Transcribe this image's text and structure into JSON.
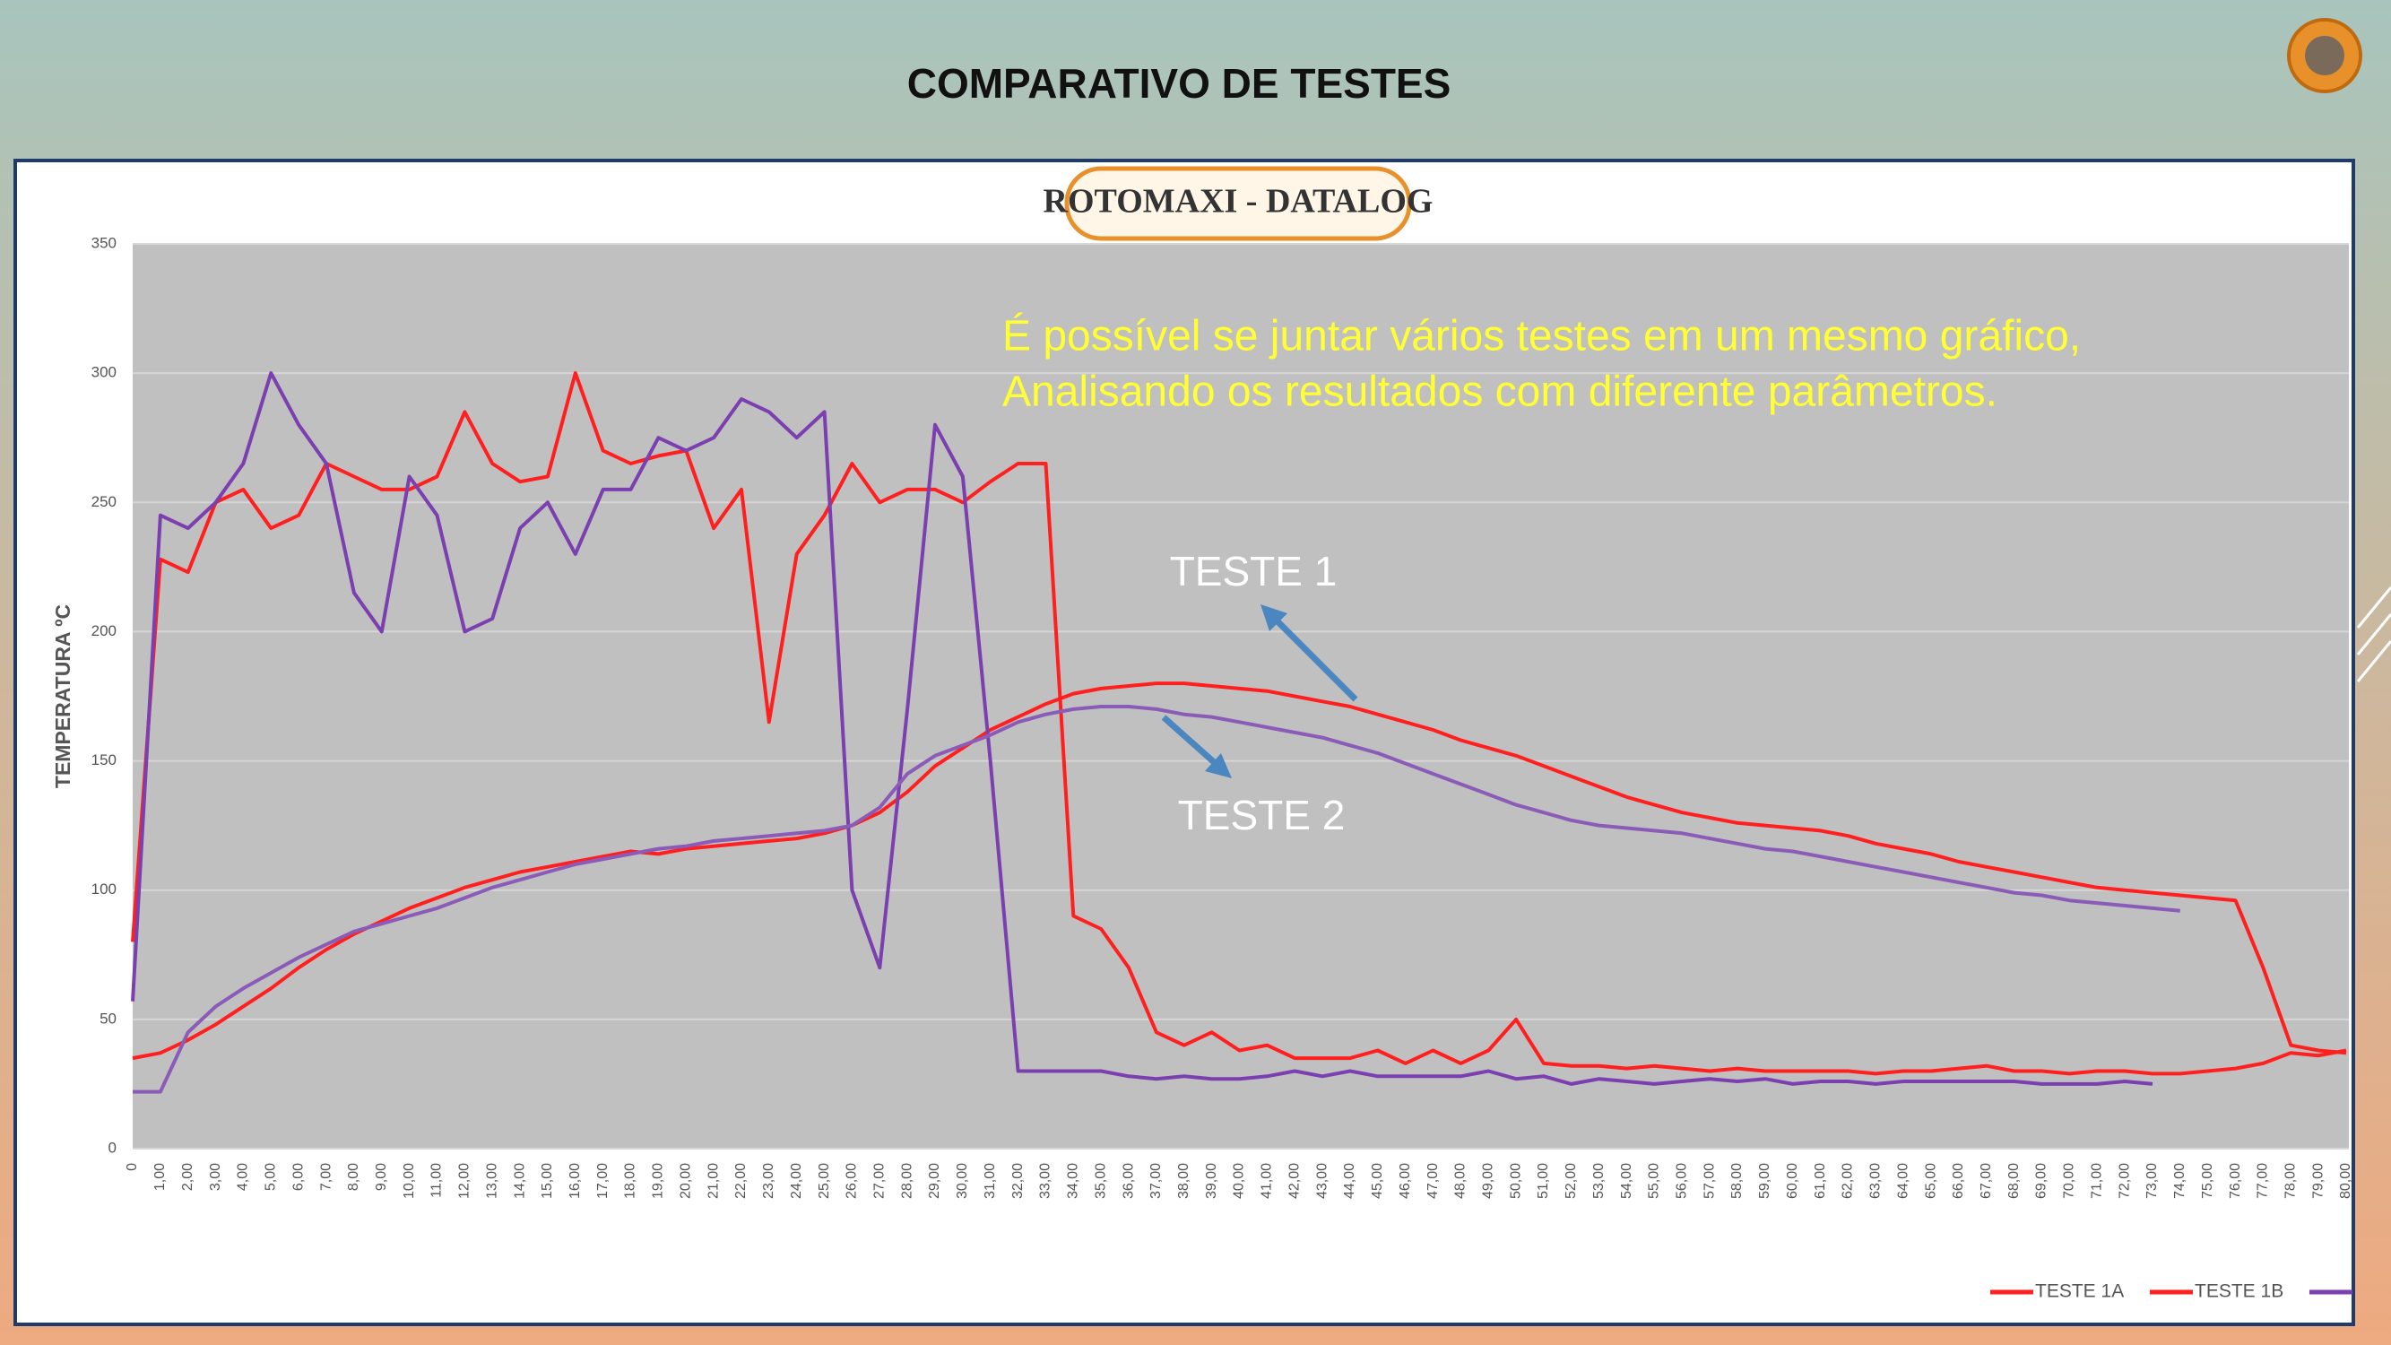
{
  "slide_title": "COMPARATIVO DE TESTES",
  "logo_text": "ROTOMAXI - DATALOG",
  "chart_data": {
    "type": "line",
    "ylabel": "TEMPERATURA ºC",
    "ylim": [
      0,
      350
    ],
    "yticks": [
      0,
      50,
      100,
      150,
      200,
      250,
      300,
      350
    ],
    "grid": true,
    "legend": "bottom-right",
    "annotations": [
      "É possível se juntar vários testes em um mesmo gráfico,",
      "Analisando os resultados com diferente parâmetros.",
      "TESTE 1",
      "TESTE 2"
    ],
    "categories": [
      "0",
      "1,00",
      "2,00",
      "3,00",
      "4,00",
      "5,00",
      "6,00",
      "7,00",
      "8,00",
      "9,00",
      "10,00",
      "11,00",
      "12,00",
      "13,00",
      "14,00",
      "15,00",
      "16,00",
      "17,00",
      "18,00",
      "19,00",
      "20,00",
      "21,00",
      "22,00",
      "23,00",
      "24,00",
      "25,00",
      "26,00",
      "27,00",
      "28,00",
      "29,00",
      "30,00",
      "31,00",
      "32,00",
      "33,00",
      "34,00",
      "35,00",
      "36,00",
      "37,00",
      "38,00",
      "39,00",
      "40,00",
      "41,00",
      "42,00",
      "43,00",
      "44,00",
      "45,00",
      "46,00",
      "47,00",
      "48,00",
      "49,00",
      "50,00",
      "51,00",
      "52,00",
      "53,00",
      "54,00",
      "55,00",
      "56,00",
      "57,00",
      "58,00",
      "59,00",
      "60,00",
      "61,00",
      "62,00",
      "63,00",
      "64,00",
      "65,00",
      "66,00",
      "67,00",
      "68,00",
      "69,00",
      "70,00",
      "71,00",
      "72,00",
      "73,00",
      "74,00",
      "75,00",
      "76,00",
      "77,00",
      "78,00",
      "79,00",
      "80,00"
    ],
    "series": [
      {
        "name": "TESTE 1A",
        "color": "#ff1f1f",
        "values": [
          80,
          228,
          223,
          250,
          255,
          240,
          245,
          265,
          260,
          255,
          255,
          260,
          285,
          265,
          258,
          260,
          300,
          270,
          265,
          268,
          270,
          240,
          255,
          165,
          230,
          245,
          265,
          250,
          255,
          255,
          250,
          258,
          265,
          265,
          90,
          85,
          70,
          45,
          40,
          45,
          38,
          40,
          35,
          35,
          35,
          38,
          33,
          38,
          33,
          38,
          50,
          33,
          32,
          32,
          31,
          32,
          31,
          30,
          31,
          30,
          30,
          30,
          30,
          29,
          30,
          30,
          31,
          32,
          30,
          30,
          29,
          30,
          30,
          29,
          29,
          30,
          31,
          33,
          37,
          36,
          38
        ]
      },
      {
        "name": "TESTE 1B",
        "color": "#ff1f1f",
        "values": [
          35,
          37,
          42,
          48,
          55,
          62,
          70,
          77,
          83,
          88,
          93,
          97,
          101,
          104,
          107,
          109,
          111,
          113,
          115,
          114,
          116,
          117,
          118,
          119,
          120,
          122,
          125,
          130,
          138,
          148,
          155,
          162,
          167,
          172,
          176,
          178,
          179,
          180,
          180,
          179,
          178,
          177,
          175,
          173,
          171,
          168,
          165,
          162,
          158,
          155,
          152,
          148,
          144,
          140,
          136,
          133,
          130,
          128,
          126,
          125,
          124,
          123,
          121,
          118,
          116,
          114,
          111,
          109,
          107,
          105,
          103,
          101,
          100,
          99,
          98,
          97,
          96,
          70,
          40,
          38,
          37
        ]
      },
      {
        "color": "#7b3fb0",
        "values": [
          57,
          245,
          240,
          250,
          265,
          300,
          280,
          265,
          215,
          200,
          260,
          245,
          200,
          205,
          240,
          250,
          230,
          255,
          255,
          275,
          270,
          275,
          290,
          285,
          275,
          285,
          100,
          70,
          170,
          280,
          260,
          150,
          30,
          30,
          30,
          30,
          28,
          27,
          28,
          27,
          27,
          28,
          30,
          28,
          30,
          28,
          28,
          28,
          28,
          30,
          27,
          28,
          25,
          27,
          26,
          25,
          26,
          27,
          26,
          27,
          25,
          26,
          26,
          25,
          26,
          26,
          26,
          26,
          26,
          25,
          25,
          25,
          26,
          25,
          null,
          null,
          null,
          null,
          null,
          null,
          null
        ]
      },
      {
        "color": "#8a5cb8",
        "values": [
          22,
          22,
          45,
          55,
          62,
          68,
          74,
          79,
          84,
          87,
          90,
          93,
          97,
          101,
          104,
          107,
          110,
          112,
          114,
          116,
          117,
          119,
          120,
          121,
          122,
          123,
          125,
          132,
          145,
          152,
          156,
          160,
          165,
          168,
          170,
          171,
          171,
          170,
          168,
          167,
          165,
          163,
          161,
          159,
          156,
          153,
          149,
          145,
          141,
          137,
          133,
          130,
          127,
          125,
          124,
          123,
          122,
          120,
          118,
          116,
          115,
          113,
          111,
          109,
          107,
          105,
          103,
          101,
          99,
          98,
          96,
          95,
          94,
          93,
          92,
          null,
          null,
          null,
          null,
          null,
          null
        ]
      }
    ]
  }
}
